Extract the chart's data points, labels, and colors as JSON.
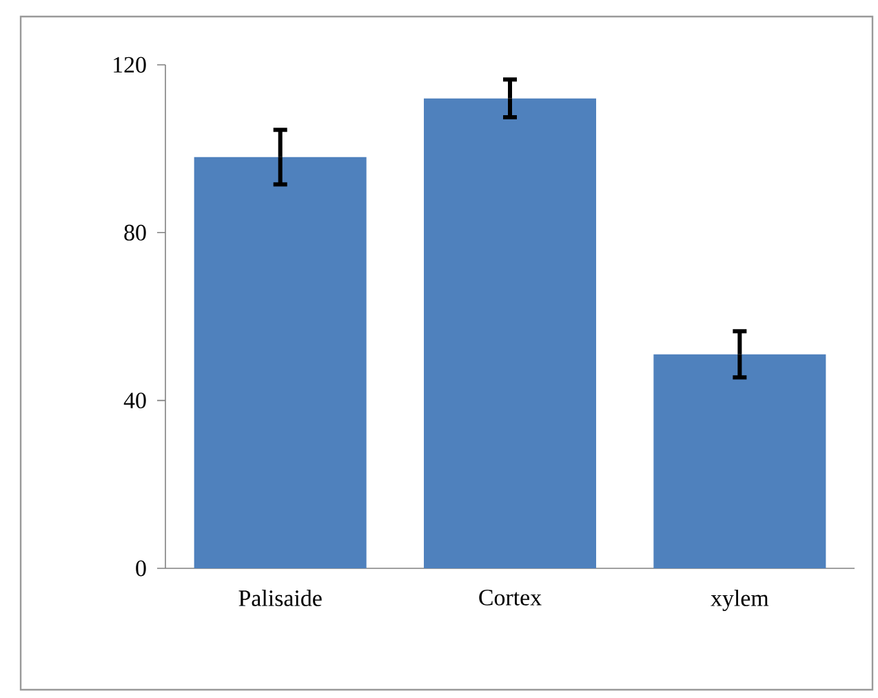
{
  "chart_data": {
    "type": "bar",
    "categories": [
      "Palisaide",
      "Cortex",
      "xylem"
    ],
    "values": [
      98,
      112,
      51
    ],
    "errors": [
      6.5,
      4.5,
      5.5
    ],
    "color": "#4f81bd",
    "ylim": [
      0,
      120
    ],
    "yticks": [
      0,
      40,
      80,
      120
    ],
    "grid": false
  }
}
